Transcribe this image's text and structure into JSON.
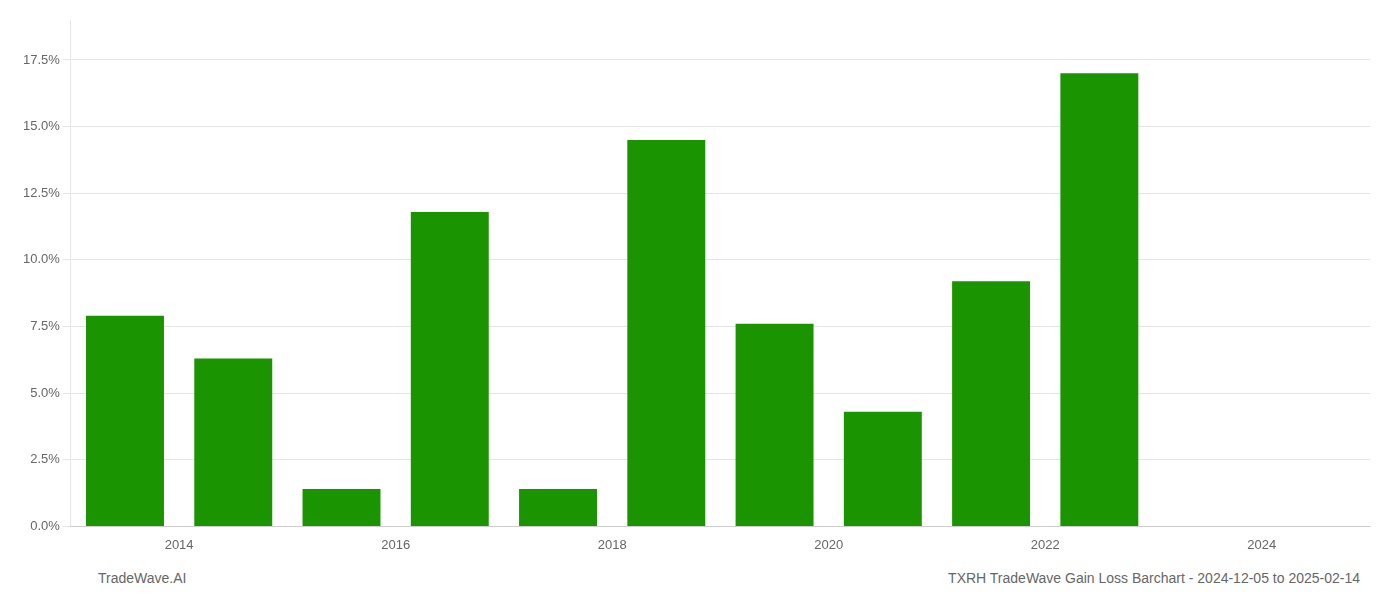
{
  "chart_data": {
    "type": "bar",
    "x": [
      2013,
      2014,
      2015,
      2016,
      2017,
      2018,
      2019,
      2020,
      2021,
      2022,
      2023
    ],
    "values": [
      0.079,
      0.063,
      0.014,
      0.118,
      0.014,
      0.145,
      0.076,
      0.043,
      0.092,
      0.17,
      null
    ],
    "color": "#1a9400",
    "xlim": [
      2012.5,
      2024.5
    ],
    "xticks": [
      {
        "value": 2013.5,
        "label": "2014"
      },
      {
        "value": 2015.5,
        "label": "2016"
      },
      {
        "value": 2017.5,
        "label": "2018"
      },
      {
        "value": 2019.5,
        "label": "2020"
      },
      {
        "value": 2021.5,
        "label": "2022"
      },
      {
        "value": 2023.5,
        "label": "2024"
      }
    ],
    "ylim": [
      0,
      0.19
    ],
    "yticks": [
      {
        "value": 0.0,
        "label": "0.0%"
      },
      {
        "value": 0.025,
        "label": "2.5%"
      },
      {
        "value": 0.05,
        "label": "5.0%"
      },
      {
        "value": 0.075,
        "label": "7.5%"
      },
      {
        "value": 0.1,
        "label": "10.0%"
      },
      {
        "value": 0.125,
        "label": "12.5%"
      },
      {
        "value": 0.15,
        "label": "15.0%"
      },
      {
        "value": 0.175,
        "label": "17.5%"
      }
    ],
    "grid": true,
    "annotations": [
      "TradeWave.AI",
      "TXRH TradeWave Gain Loss Barchart - 2024-12-05 to 2025-02-14"
    ]
  }
}
